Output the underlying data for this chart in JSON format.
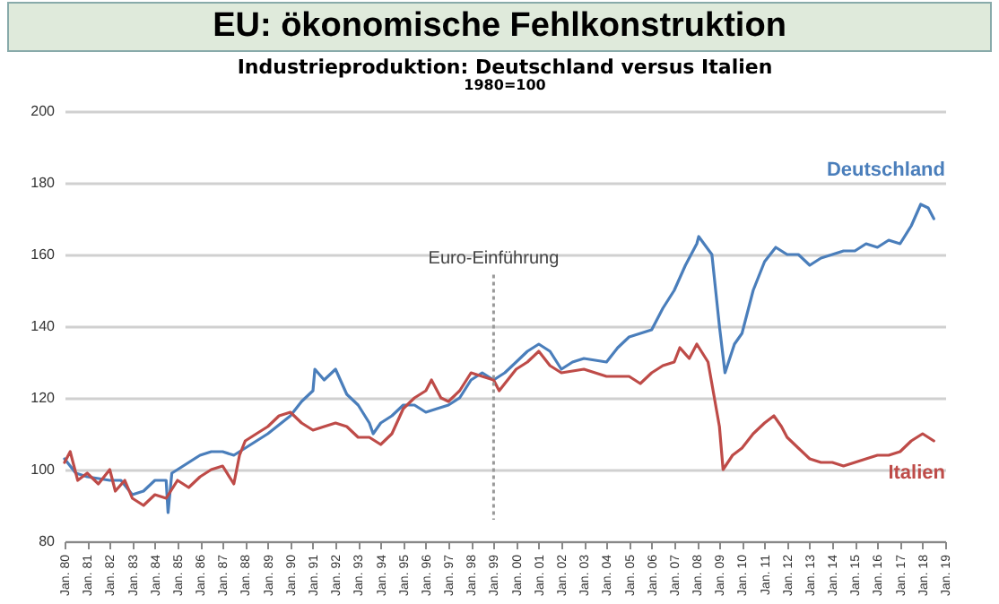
{
  "chart_data": {
    "type": "line",
    "title": "EU: ökonomische Fehlkonstruktion",
    "subtitle": "Industrieproduktion:  Deutschland  versus  Italien",
    "annotations": [
      "1980=100"
    ],
    "series": [
      {
        "name": "Deutschland",
        "color": "#4a7ebb",
        "x": [
          "1980-01",
          "1980-07",
          "1981-01",
          "1982-01",
          "1982-07",
          "1983-01",
          "1983-07",
          "1984-01",
          "1984-07",
          "1984-08",
          "1984-10",
          "1985-01",
          "1986-01",
          "1986-07",
          "1987-01",
          "1987-07",
          "1988-01",
          "1989-01",
          "1990-01",
          "1990-07",
          "1991-01",
          "1991-02",
          "1991-07",
          "1992-01",
          "1992-07",
          "1993-01",
          "1993-07",
          "1993-09",
          "1994-01",
          "1994-07",
          "1995-01",
          "1995-07",
          "1996-01",
          "1996-07",
          "1997-01",
          "1997-07",
          "1998-01",
          "1998-07",
          "1999-01",
          "1999-07",
          "2000-01",
          "2000-07",
          "2001-01",
          "2001-07",
          "2002-01",
          "2002-07",
          "2003-01",
          "2004-01",
          "2004-07",
          "2005-01",
          "2006-01",
          "2006-07",
          "2007-01",
          "2007-07",
          "2008-01",
          "2008-02",
          "2008-09",
          "2009-01",
          "2009-04",
          "2009-09",
          "2010-01",
          "2010-07",
          "2011-01",
          "2011-07",
          "2012-01",
          "2012-07",
          "2013-01",
          "2013-07",
          "2014-01",
          "2014-07",
          "2015-01",
          "2015-07",
          "2016-01",
          "2016-07",
          "2017-01",
          "2017-07",
          "2017-12",
          "2018-04",
          "2018-07"
        ],
        "values": [
          103,
          99,
          98,
          97,
          97,
          93,
          94,
          97,
          97,
          88,
          99,
          100,
          104,
          105,
          105,
          104,
          106,
          110,
          115,
          119,
          122,
          128,
          125,
          128,
          121,
          118,
          113,
          110,
          113,
          115,
          118,
          118,
          116,
          117,
          118,
          120,
          125,
          127,
          125,
          127,
          130,
          133,
          135,
          133,
          128,
          130,
          131,
          130,
          134,
          137,
          139,
          145,
          150,
          157,
          163,
          165,
          160,
          140,
          127,
          135,
          138,
          150,
          158,
          162,
          160,
          160,
          157,
          159,
          160,
          161,
          161,
          163,
          162,
          164,
          163,
          168,
          174,
          173,
          170
        ]
      },
      {
        "name": "Italien",
        "color": "#be4b48",
        "x": [
          "1980-01",
          "1980-04",
          "1980-08",
          "1981-01",
          "1981-07",
          "1982-01",
          "1982-04",
          "1982-09",
          "1983-01",
          "1983-07",
          "1984-01",
          "1984-07",
          "1985-01",
          "1985-07",
          "1986-01",
          "1986-07",
          "1987-01",
          "1987-07",
          "1987-10",
          "1988-01",
          "1988-07",
          "1989-01",
          "1989-07",
          "1990-01",
          "1990-07",
          "1991-01",
          "1991-07",
          "1992-01",
          "1992-07",
          "1993-01",
          "1993-07",
          "1994-01",
          "1994-07",
          "1995-01",
          "1995-07",
          "1996-01",
          "1996-04",
          "1996-09",
          "1997-01",
          "1997-07",
          "1998-01",
          "1998-07",
          "1999-01",
          "1999-04",
          "2000-01",
          "2000-07",
          "2001-01",
          "2001-07",
          "2002-01",
          "2003-01",
          "2004-01",
          "2005-01",
          "2005-07",
          "2006-01",
          "2006-07",
          "2007-01",
          "2007-04",
          "2007-09",
          "2008-01",
          "2008-07",
          "2009-01",
          "2009-03",
          "2009-08",
          "2010-01",
          "2010-07",
          "2011-01",
          "2011-06",
          "2011-10",
          "2012-01",
          "2012-07",
          "2013-01",
          "2013-07",
          "2014-01",
          "2014-07",
          "2015-01",
          "2015-07",
          "2016-01",
          "2016-07",
          "2017-01",
          "2017-07",
          "2018-01",
          "2018-07"
        ],
        "values": [
          102,
          105,
          97,
          99,
          96,
          100,
          94,
          97,
          92,
          90,
          93,
          92,
          97,
          95,
          98,
          100,
          101,
          96,
          104,
          108,
          110,
          112,
          115,
          116,
          113,
          111,
          112,
          113,
          112,
          109,
          109,
          107,
          110,
          117,
          120,
          122,
          125,
          120,
          119,
          122,
          127,
          126,
          125,
          122,
          128,
          130,
          133,
          129,
          127,
          128,
          126,
          126,
          124,
          127,
          129,
          130,
          134,
          131,
          135,
          130,
          112,
          100,
          104,
          106,
          110,
          113,
          115,
          112,
          109,
          106,
          103,
          102,
          102,
          101,
          102,
          103,
          104,
          104,
          105,
          108,
          110,
          108
        ]
      }
    ],
    "xlim": [
      "1980-01",
      "2019-01"
    ],
    "xticks": [
      {
        "value": "1980-01",
        "label": "Jan. 80"
      },
      {
        "value": "1981-01",
        "label": "Jan. 81"
      },
      {
        "value": "1982-01",
        "label": "Jan. 82"
      },
      {
        "value": "1983-01",
        "label": "Jan. 83"
      },
      {
        "value": "1984-01",
        "label": "Jan. 84"
      },
      {
        "value": "1985-01",
        "label": "Jan. 85"
      },
      {
        "value": "1986-01",
        "label": "Jan. 86"
      },
      {
        "value": "1987-01",
        "label": "Jan. 87"
      },
      {
        "value": "1988-01",
        "label": "Jan. 88"
      },
      {
        "value": "1989-01",
        "label": "Jan. 89"
      },
      {
        "value": "1990-01",
        "label": "Jan. 90"
      },
      {
        "value": "1991-01",
        "label": "Jan. 91"
      },
      {
        "value": "1992-01",
        "label": "Jan. 92"
      },
      {
        "value": "1993-01",
        "label": "Jan. 93"
      },
      {
        "value": "1994-01",
        "label": "Jan. 94"
      },
      {
        "value": "1995-01",
        "label": "Jan. 95"
      },
      {
        "value": "1996-01",
        "label": "Jan. 96"
      },
      {
        "value": "1997-01",
        "label": "Jan. 97"
      },
      {
        "value": "1998-01",
        "label": "Jan. 98"
      },
      {
        "value": "1999-01",
        "label": "Jan. 99"
      },
      {
        "value": "2000-01",
        "label": "Jan. 00"
      },
      {
        "value": "2001-01",
        "label": "Jan. 01"
      },
      {
        "value": "2002-01",
        "label": "Jan. 02"
      },
      {
        "value": "2003-01",
        "label": "Jan. 03"
      },
      {
        "value": "2004-01",
        "label": "Jan. 04"
      },
      {
        "value": "2005-01",
        "label": "Jan. 05"
      },
      {
        "value": "2006-01",
        "label": "Jan. 06"
      },
      {
        "value": "2007-01",
        "label": "Jan. 07"
      },
      {
        "value": "2008-01",
        "label": "Jan. 08"
      },
      {
        "value": "2009-01",
        "label": "Jan. 09"
      },
      {
        "value": "2010-01",
        "label": "Jan. 10"
      },
      {
        "value": "2011-01",
        "label": "Jan. 11"
      },
      {
        "value": "2012-01",
        "label": "Jan. 12"
      },
      {
        "value": "2013-01",
        "label": "Jan. 13"
      },
      {
        "value": "2014-01",
        "label": "Jan. 14"
      },
      {
        "value": "2015-01",
        "label": "Jan. 15"
      },
      {
        "value": "2016-01",
        "label": "Jan. 16"
      },
      {
        "value": "2017-01",
        "label": "Jan. 17"
      },
      {
        "value": "2018-01",
        "label": "Jan. 18"
      },
      {
        "value": "2019-01",
        "label": "Jan. 19"
      }
    ],
    "ylim": [
      80,
      200
    ],
    "yticks": [
      80,
      100,
      120,
      140,
      160,
      180,
      200
    ],
    "grid": "y",
    "legend": false,
    "marker": "none",
    "line_style": "solid",
    "ref_lines": [
      {
        "axis": "x",
        "value": "1999-01",
        "label": "Euro-Einführung",
        "color": "#999999",
        "line_style": "dotted"
      }
    ]
  }
}
